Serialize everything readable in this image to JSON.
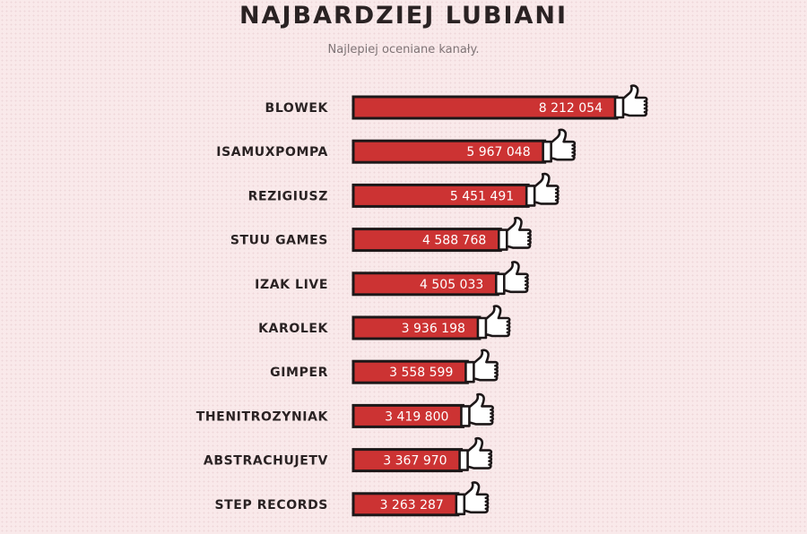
{
  "chart_data": {
    "type": "bar",
    "orientation": "horizontal",
    "title": "NAJBARDZIEJ LUBIANI",
    "subtitle": "Najlepiej oceniane kanały.",
    "categories": [
      "BLOWEK",
      "ISAMUXPOMPA",
      "REZIGIUSZ",
      "STUU GAMES",
      "IZAK LIVE",
      "KAROLEK",
      "GIMPER",
      "THENITROZYNIAK",
      "ABSTRACHUJETV",
      "STEP RECORDS"
    ],
    "values": [
      8212054,
      5967048,
      5451491,
      4588768,
      4505033,
      3936198,
      3558599,
      3419800,
      3367970,
      3263287
    ],
    "value_labels": [
      "8 212 054",
      "5 967 048",
      "5 451 491",
      "4 588 768",
      "4 505 033",
      "3 936 198",
      "3 558 599",
      "3 419 800",
      "3 367 970",
      "3 263 287"
    ],
    "bar_end_icon": "thumbs-up-icon",
    "colors": {
      "bar": "#cc3333",
      "outline": "#1d1718",
      "label": "#2a2223",
      "value_text": "#ffffff"
    },
    "grid": false,
    "legend": "none"
  }
}
